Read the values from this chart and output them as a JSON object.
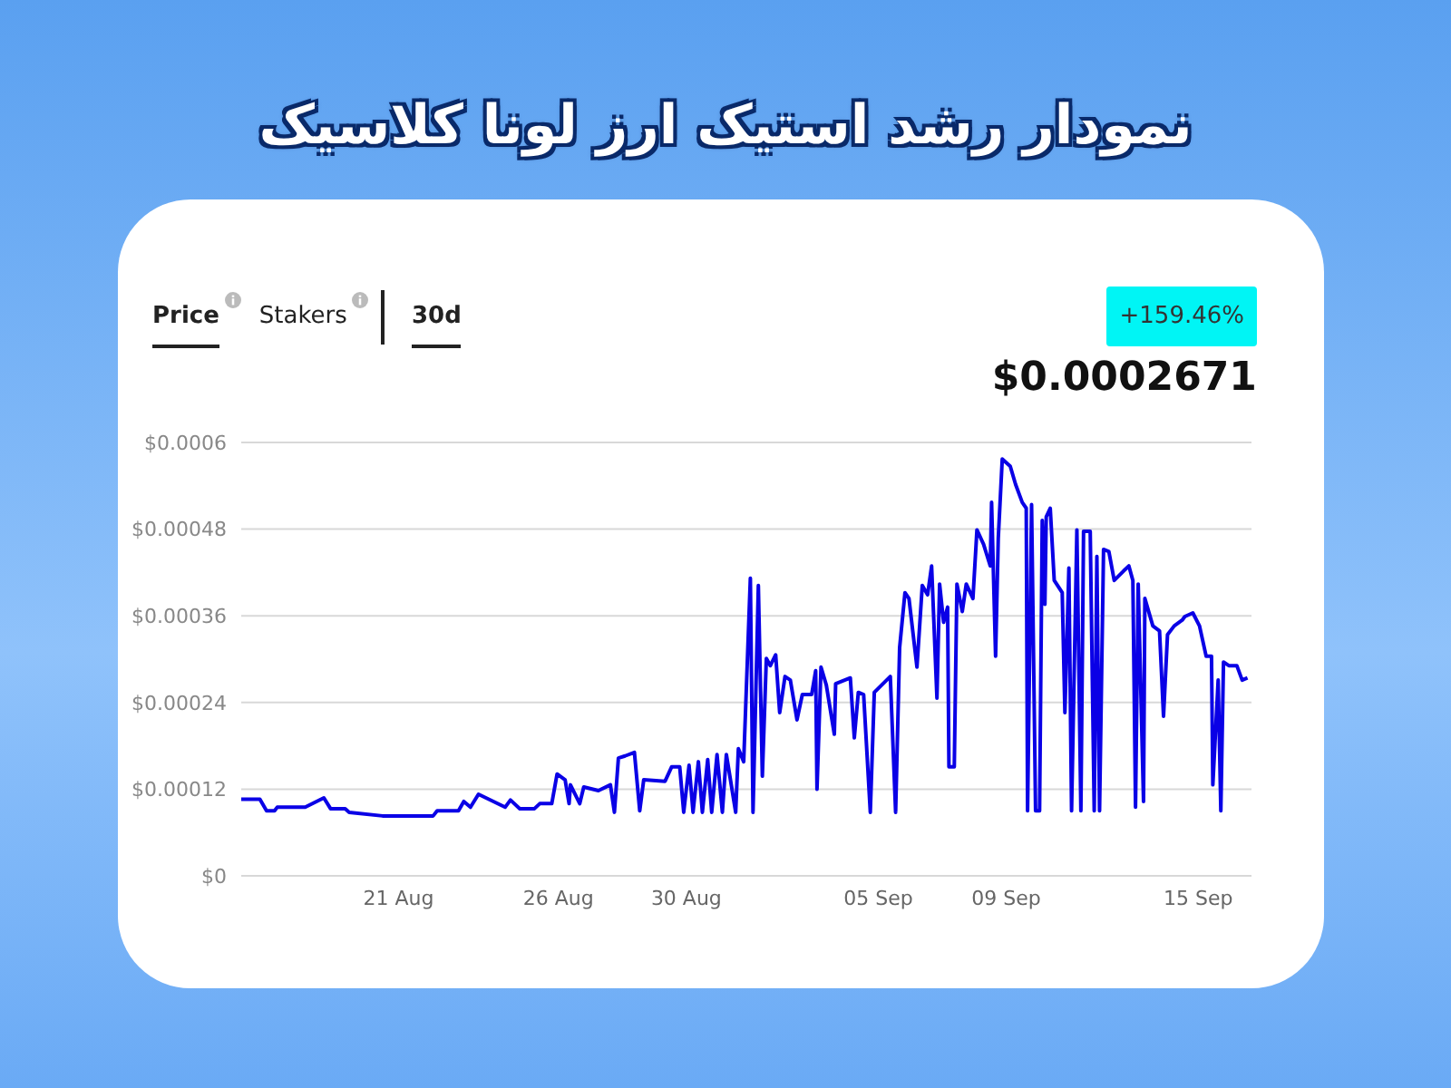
{
  "chart_data": {
    "type": "line",
    "title": "نمودار رشد استیک ارز لونا کلاسیک",
    "annotations": [
      "Price",
      "Stakers",
      "30d",
      "+159.46%",
      "$0.0002671"
    ],
    "x": [
      "--08-16T02:00",
      "--08-16T16:00",
      "--08-16T21:00",
      "--08-17T03:00",
      "--08-17T05:00",
      "--08-18T02:00",
      "--08-18T16:00",
      "--08-18T21:00",
      "--08-19T08:00",
      "--08-19T11:00",
      "--08-20T12:00",
      "--08-22T02:00",
      "--08-22T05:00",
      "--08-22T21:00",
      "--08-23T01:00",
      "--08-23T06:00",
      "--08-23T12:00",
      "--08-24T08:00",
      "--08-24T12:00",
      "--08-24T19:00",
      "--08-25T06:00",
      "--08-25T10:00",
      "--08-25T19:00",
      "--08-25T23:00",
      "--08-26T05:00",
      "--08-26T08:00",
      "--08-26T09:00",
      "--08-26T16:00",
      "--08-26T19:00",
      "--08-27T06:00",
      "--08-27T15:00",
      "--08-27T18:00",
      "--08-27T21:00",
      "--08-28T02:00",
      "--08-28T09:00",
      "--08-28T13:00",
      "--08-28T16:00",
      "--08-29T08:00",
      "--08-29T13:00",
      "--08-29T19:00",
      "--08-29T22:00",
      "--08-30T02:00",
      "--08-30T05:00",
      "--08-30T09:00",
      "--08-30T12:00",
      "--08-30T16:00",
      "--08-30T19:00",
      "--08-30T23:00",
      "--08-31T03:00",
      "--08-31T06:00",
      "--08-31T13:00",
      "--08-31T15:00",
      "--08-31T19:00",
      "--09-01T00:00",
      "--09-01T02:00",
      "--09-01T06:00",
      "--09-01T09:00",
      "--09-01T12:00",
      "--09-01T15:00",
      "--09-01T19:00",
      "--09-01T22:00",
      "--09-02T02:00",
      "--09-02T06:00",
      "--09-02T11:00",
      "--09-02T15:00",
      "--09-02T22:00",
      "--09-03T01:00",
      "--09-03T02:00",
      "--09-03T05:00",
      "--09-03T09:00",
      "--09-03T15:00",
      "--09-03T16:00",
      "--09-04T03:00",
      "--09-04T06:00",
      "--09-04T09:00",
      "--09-04T13:00",
      "--09-04T18:00",
      "--09-04T21:00",
      "--09-05T09:00",
      "--09-05T13:00",
      "--09-05T16:00",
      "--09-05T20:00",
      "--09-05T23:00",
      "--09-06T05:00",
      "--09-06T09:00",
      "--09-06T13:00",
      "--09-06T16:00",
      "--09-06T20:00",
      "--09-06T22:00",
      "--09-07T01:00",
      "--09-07T04:00",
      "--09-07T05:00",
      "--09-07T09:00",
      "--09-07T11:00",
      "--09-07T15:00",
      "--09-07T18:00",
      "--09-07T23:00",
      "--09-08T02:00",
      "--09-08T07:00",
      "--09-08T12:00",
      "--09-08T13:00",
      "--09-08T16:00",
      "--09-08T18:00",
      "--09-08T21:00",
      "--09-09T03:00",
      "--09-09T07:00",
      "--09-09T12:00",
      "--09-09T15:00",
      "--09-09T16:00",
      "--09-09T19:00",
      "--09-09T22:00",
      "--09-10T01:00",
      "--09-10T03:00",
      "--09-10T05:00",
      "--09-10T06:00",
      "--09-10T09:00",
      "--09-10T12:00",
      "--09-10T18:00",
      "--09-10T20:00",
      "--09-10T23:00",
      "--09-11T01:00",
      "--09-11T05:00",
      "--09-11T08:00",
      "--09-11T10:00",
      "--09-11T15:00",
      "--09-11T18:00",
      "--09-11T20:00",
      "--09-11T22:00",
      "--09-12T01:00",
      "--09-12T05:00",
      "--09-12T09:00",
      "--09-12T16:00",
      "--09-12T20:00",
      "--09-12T23:00",
      "--09-13T01:00",
      "--09-13T03:00",
      "--09-13T07:00",
      "--09-13T08:00",
      "--09-13T14:00",
      "--09-13T19:00",
      "--09-13T22:00",
      "--09-14T01:00",
      "--09-14T06:00",
      "--09-14T12:00",
      "--09-14T14:00",
      "--09-14T20:00",
      "--09-15T01:00",
      "--09-15T06:00",
      "--09-15T10:00",
      "--09-15T11:00",
      "--09-15T15:00",
      "--09-15T17:00",
      "--09-15T19:00",
      "--09-15T23:00",
      "--09-16T05:00",
      "--09-16T09:00",
      "--09-16T13:00"
    ],
    "series": [
      {
        "color": "#0a00e6",
        "values": [
          0.000106,
          0.000106,
          9e-05,
          9e-05,
          9.5e-05,
          9.5e-05,
          0.000108,
          9.3e-05,
          9.3e-05,
          8.8e-05,
          8.3e-05,
          8.3e-05,
          9e-05,
          9e-05,
          0.000103,
          9.5e-05,
          0.000113,
          9.5e-05,
          0.000105,
          9.3e-05,
          9.3e-05,
          0.0001,
          0.0001,
          0.000141,
          0.000133,
          0.0001,
          0.000126,
          0.0001,
          0.000123,
          0.000118,
          0.000126,
          8.8e-05,
          0.000163,
          0.000166,
          0.000171,
          9e-05,
          0.000133,
          0.000131,
          0.000151,
          0.000151,
          8.8e-05,
          0.000153,
          8.8e-05,
          0.000158,
          8.8e-05,
          0.000161,
          8.8e-05,
          0.000168,
          8.8e-05,
          0.000168,
          8.8e-05,
          0.000176,
          0.000158,
          0.000412,
          8.8e-05,
          0.000402,
          0.000138,
          0.000301,
          0.000291,
          0.000306,
          0.000226,
          0.000276,
          0.000271,
          0.000216,
          0.000251,
          0.000251,
          0.000284,
          0.00012,
          0.000289,
          0.000264,
          0.000196,
          0.000266,
          0.000274,
          0.000191,
          0.000254,
          0.000251,
          8.8e-05,
          0.000254,
          0.000276,
          8.8e-05,
          0.000316,
          0.000392,
          0.000384,
          0.000289,
          0.000402,
          0.000389,
          0.000429,
          0.000246,
          0.000404,
          0.000351,
          0.000372,
          0.000151,
          0.000151,
          0.000404,
          0.000366,
          0.000404,
          0.000384,
          0.000479,
          0.000459,
          0.000429,
          0.000517,
          0.000304,
          0.000467,
          0.000577,
          0.000567,
          0.000542,
          0.000517,
          0.000509,
          9e-05,
          0.000514,
          9e-05,
          9e-05,
          0.000492,
          0.000376,
          0.000497,
          0.000509,
          0.000409,
          0.000392,
          0.000226,
          0.000426,
          9e-05,
          0.000479,
          9e-05,
          0.000477,
          0.000477,
          9e-05,
          0.000442,
          9e-05,
          0.000452,
          0.000449,
          0.000409,
          0.000422,
          0.000429,
          0.000409,
          9.5e-05,
          0.000404,
          0.000103,
          0.000384,
          0.000346,
          0.000339,
          0.000221,
          0.000334,
          0.000346,
          0.000354,
          0.000359,
          0.000364,
          0.000346,
          0.000304,
          0.000304,
          0.000126,
          0.000271,
          9e-05,
          0.000296,
          0.000291,
          0.000291,
          0.000271,
          0.000274
        ]
      }
    ],
    "xlim": [
      "--08-16T02:00",
      "--09-16T16:00"
    ],
    "xticks": [
      {
        "value": "--08-21",
        "label": "21 Aug"
      },
      {
        "value": "--08-26",
        "label": "26 Aug"
      },
      {
        "value": "--08-30",
        "label": "30 Aug"
      },
      {
        "value": "--09-05",
        "label": "05 Sep"
      },
      {
        "value": "--09-09",
        "label": "09 Sep"
      },
      {
        "value": "--09-15",
        "label": "15 Sep"
      }
    ],
    "ylim": [
      0,
      0.0006
    ],
    "yticks": [
      {
        "value": 0,
        "label": "$0"
      },
      {
        "value": 0.00012,
        "label": "$0.00012"
      },
      {
        "value": 0.00024,
        "label": "$0.00024"
      },
      {
        "value": 0.00036,
        "label": "$0.00036"
      },
      {
        "value": 0.00048,
        "label": "$0.00048"
      },
      {
        "value": 0.0006,
        "label": "$0.0006"
      }
    ],
    "grid": "y",
    "marker": "none",
    "line_style": "solid",
    "legend": false
  }
}
